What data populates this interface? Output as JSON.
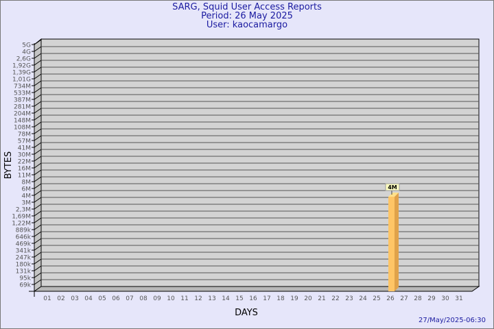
{
  "chart_data": {
    "type": "bar",
    "title": "SARG, Squid User Access Reports",
    "subtitle_period": "Period: 26 May 2025",
    "subtitle_user": "User: kaocamargo",
    "xlabel": "DAYS",
    "ylabel": "BYTES",
    "y_scale": "log",
    "y_tick_labels": [
      "5G",
      "4G",
      "2,6G",
      "1,92G",
      "1,39G",
      "1,01G",
      "734M",
      "533M",
      "387M",
      "281M",
      "204M",
      "148M",
      "108M",
      "78M",
      "57M",
      "41M",
      "30M",
      "22M",
      "16M",
      "11M",
      "8M",
      "6M",
      "4M",
      "3M",
      "2,3M",
      "1,69M",
      "1,22M",
      "889k",
      "646k",
      "469k",
      "341k",
      "247k",
      "180k",
      "131k",
      "95k",
      "69k"
    ],
    "categories": [
      "01",
      "02",
      "03",
      "04",
      "05",
      "06",
      "07",
      "08",
      "09",
      "10",
      "11",
      "12",
      "13",
      "14",
      "15",
      "16",
      "17",
      "18",
      "19",
      "20",
      "21",
      "22",
      "23",
      "24",
      "25",
      "26",
      "27",
      "28",
      "29",
      "30",
      "31"
    ],
    "values": [
      null,
      null,
      null,
      null,
      null,
      null,
      null,
      null,
      null,
      null,
      null,
      null,
      null,
      null,
      null,
      null,
      null,
      null,
      null,
      null,
      null,
      null,
      null,
      null,
      null,
      "4M",
      null,
      null,
      null,
      null,
      null
    ],
    "data_labels": [
      {
        "category": "26",
        "label": "4M"
      }
    ],
    "grid": true,
    "colors": {
      "bar": "#ffc566",
      "bar_side": "#e0a24a",
      "bar_top": "#ffe08a",
      "plot_bg": "#d3d3d3",
      "text": "#1a1aa0"
    }
  },
  "footer": {
    "timestamp": "27/May/2025-06:30"
  }
}
